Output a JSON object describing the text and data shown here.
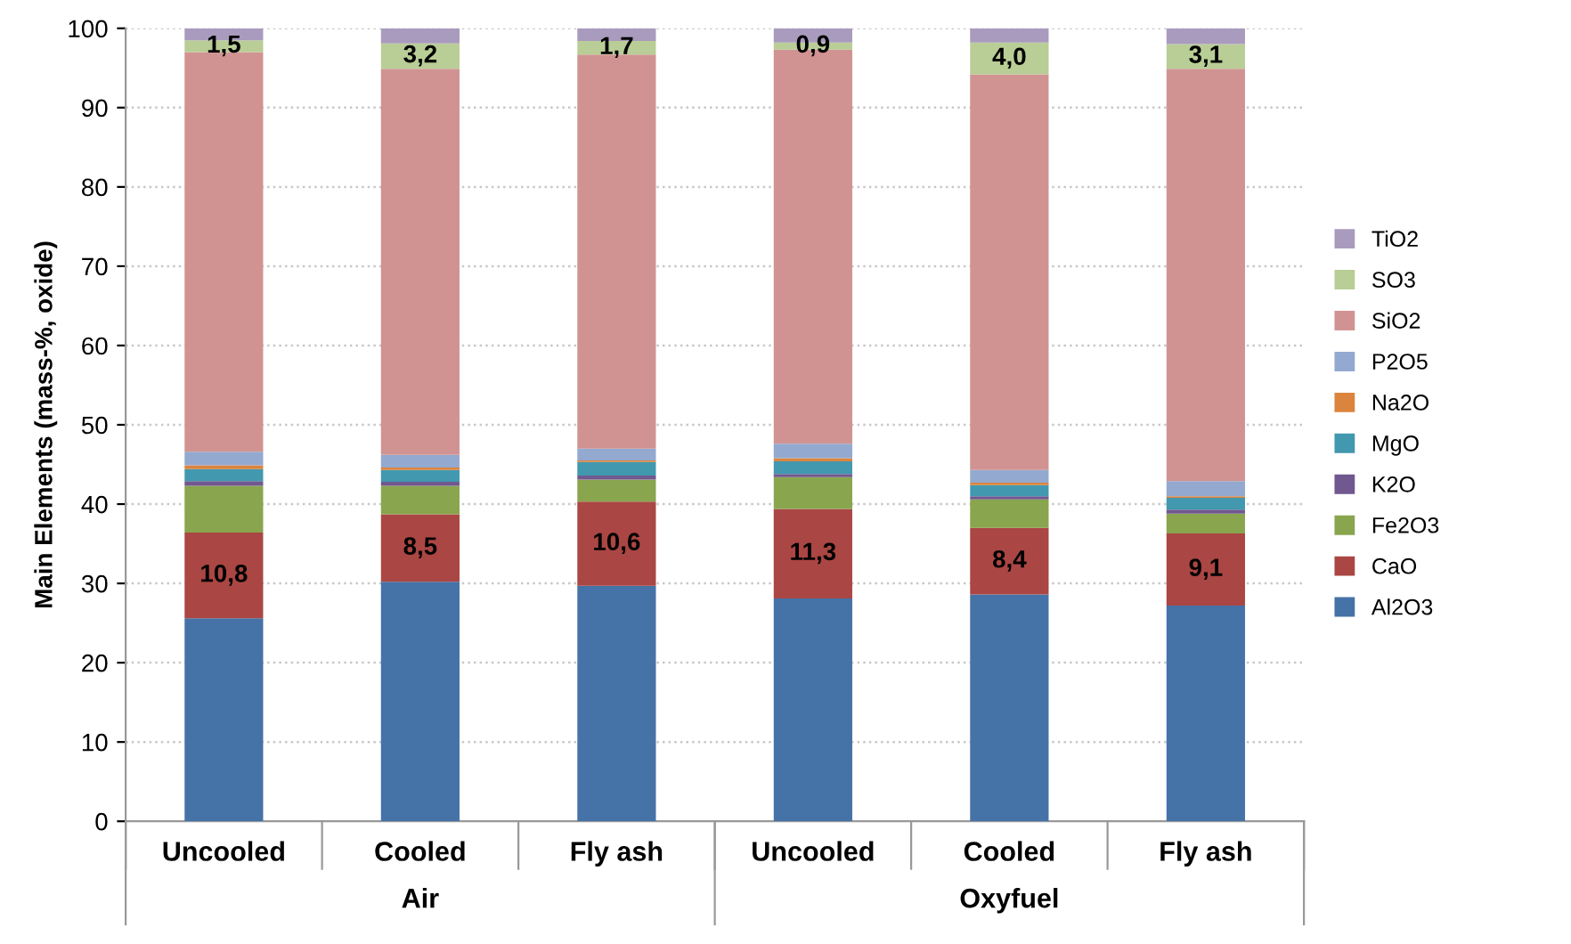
{
  "chart_data": {
    "type": "bar",
    "stacked": true,
    "ylabel": "Main Elements (mass-%, oxide)",
    "categories": [
      "Uncooled",
      "Cooled",
      "Fly ash",
      "Uncooled",
      "Cooled",
      "Fly ash"
    ],
    "annotations": [
      "Air",
      "Oxyfuel"
    ],
    "ylim": [
      0,
      100
    ],
    "yticks": [
      0,
      10,
      20,
      30,
      40,
      50,
      60,
      70,
      80,
      90,
      100
    ],
    "grid": "y",
    "legend": "right",
    "series": [
      {
        "name": "Al2O3",
        "color": "#4572a7",
        "values": [
          25.6,
          30.2,
          29.7,
          28.1,
          28.6,
          27.2
        ]
      },
      {
        "name": "CaO",
        "color": "#aa4643",
        "values": [
          10.8,
          8.5,
          10.6,
          11.3,
          8.4,
          9.1
        ],
        "value_labels": [
          "10,8",
          "8,5",
          "10,6",
          "11,3",
          "8,4",
          "9,1"
        ]
      },
      {
        "name": "Fe2O3",
        "color": "#89a54e",
        "values": [
          5.9,
          3.6,
          2.8,
          4.0,
          3.6,
          2.5
        ]
      },
      {
        "name": "K2O",
        "color": "#71588f",
        "values": [
          0.6,
          0.5,
          0.5,
          0.4,
          0.4,
          0.5
        ]
      },
      {
        "name": "MgO",
        "color": "#4198af",
        "values": [
          1.5,
          1.5,
          1.7,
          1.6,
          1.4,
          1.5
        ]
      },
      {
        "name": "Na2O",
        "color": "#db843d",
        "values": [
          0.5,
          0.3,
          0.2,
          0.4,
          0.3,
          0.2
        ]
      },
      {
        "name": "P2O5",
        "color": "#93a9cf",
        "values": [
          1.7,
          1.6,
          1.5,
          1.8,
          1.6,
          1.9
        ]
      },
      {
        "name": "SiO2",
        "color": "#d19392",
        "values": [
          50.4,
          48.7,
          49.7,
          49.7,
          49.9,
          52.0
        ]
      },
      {
        "name": "SO3",
        "color": "#b9cd96",
        "values": [
          1.5,
          3.2,
          1.7,
          0.9,
          4.0,
          3.1
        ],
        "value_labels": [
          "1,5",
          "3,2",
          "1,7",
          "0,9",
          "4,0",
          "3,1"
        ]
      },
      {
        "name": "TiO2",
        "color": "#a99bbd",
        "values": [
          1.5,
          1.9,
          1.6,
          1.8,
          1.8,
          2.0
        ]
      }
    ]
  }
}
